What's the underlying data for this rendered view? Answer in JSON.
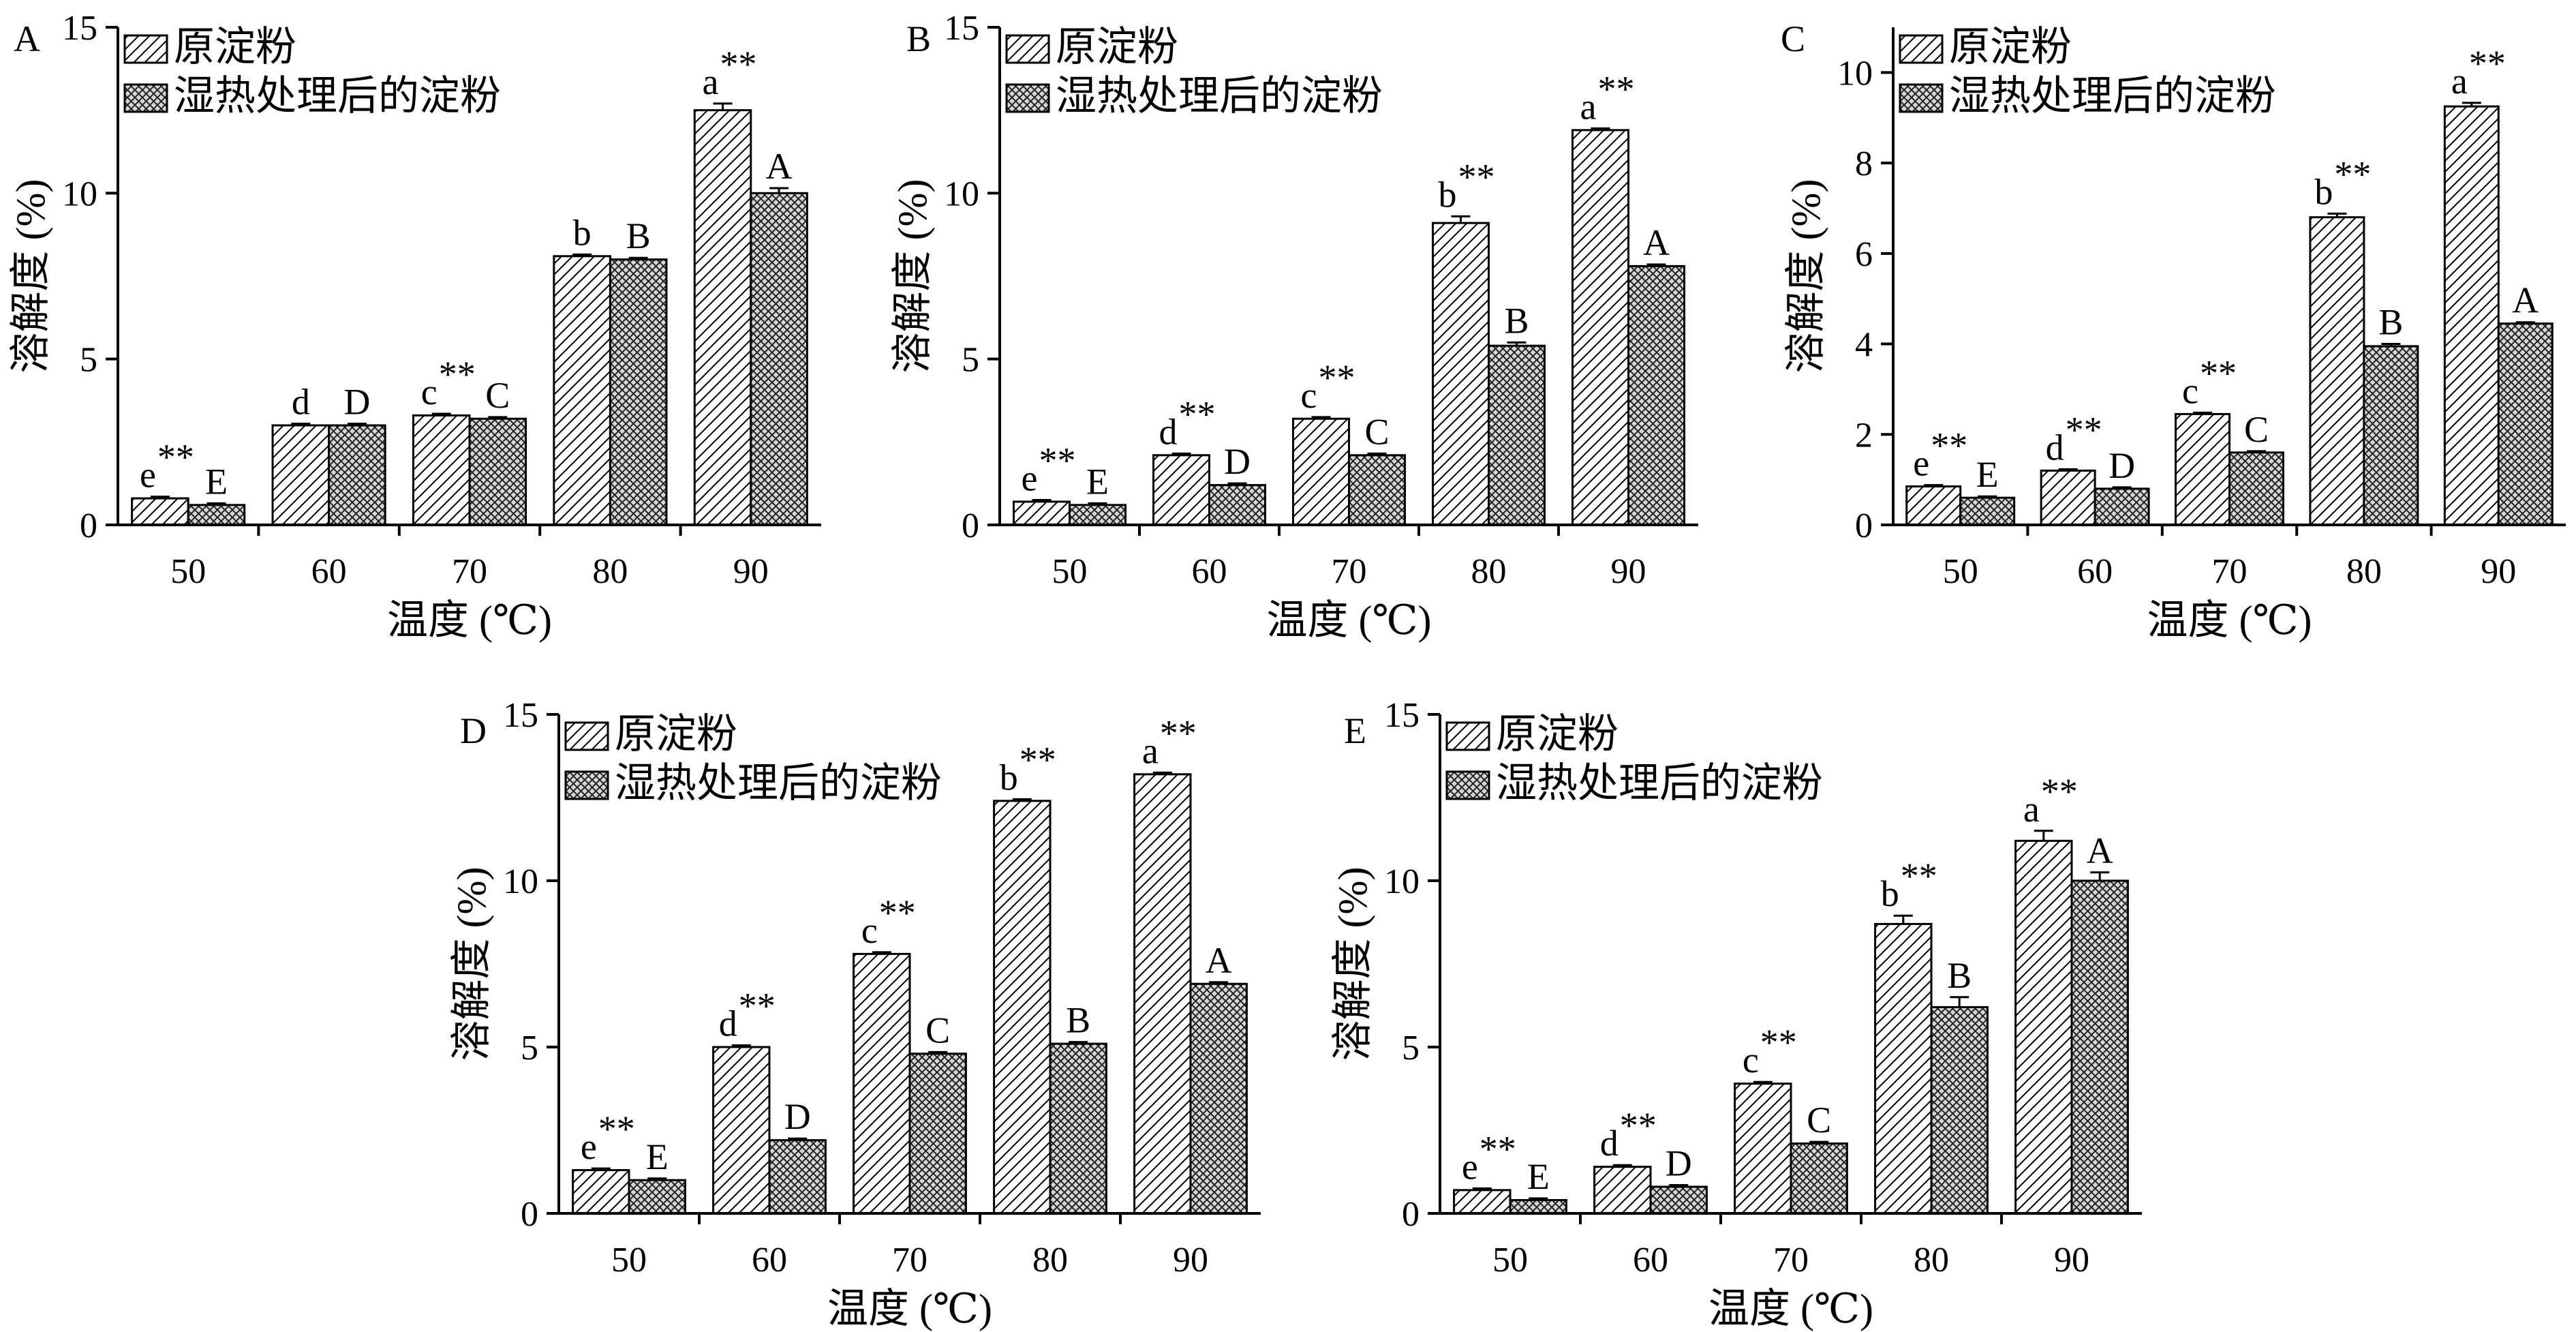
{
  "chart_data": [
    {
      "type": "bar",
      "panel": "A",
      "categories": [
        "50",
        "60",
        "70",
        "80",
        "90"
      ],
      "xlabel": "温度 (℃)",
      "ylabel": "溶解度 (%)",
      "ylim": [
        0,
        15
      ],
      "yticks": [
        0,
        5,
        10,
        15
      ],
      "series": [
        {
          "name": "原淀粉",
          "pattern": "diagonal-hatch",
          "values": [
            0.8,
            3.0,
            3.3,
            8.1,
            12.5
          ],
          "errors": [
            0.05,
            0.05,
            0.05,
            0.05,
            0.2
          ],
          "letters": [
            "e",
            "d",
            "c",
            "b",
            "a"
          ],
          "stars": [
            "**",
            "",
            "**",
            "",
            "**"
          ]
        },
        {
          "name": "湿热处理后的淀粉",
          "pattern": "cross-hatch",
          "values": [
            0.6,
            3.0,
            3.2,
            8.0,
            10.0
          ],
          "errors": [
            0.05,
            0.05,
            0.05,
            0.05,
            0.15
          ],
          "letters": [
            "E",
            "D",
            "C",
            "B",
            "A"
          ],
          "stars": [
            "",
            "",
            "",
            "",
            ""
          ]
        }
      ],
      "legend": {
        "position": "top-left"
      }
    },
    {
      "type": "bar",
      "panel": "B",
      "categories": [
        "50",
        "60",
        "70",
        "80",
        "90"
      ],
      "xlabel": "温度 (℃)",
      "ylabel": "溶解度 (%)",
      "ylim": [
        0,
        15
      ],
      "yticks": [
        0,
        5,
        10,
        15
      ],
      "series": [
        {
          "name": "原淀粉",
          "pattern": "diagonal-hatch",
          "values": [
            0.7,
            2.1,
            3.2,
            9.1,
            11.9
          ],
          "errors": [
            0.05,
            0.05,
            0.05,
            0.2,
            0.05
          ],
          "letters": [
            "e",
            "d",
            "c",
            "b",
            "a"
          ],
          "stars": [
            "**",
            "**",
            "**",
            "**",
            "**"
          ]
        },
        {
          "name": "湿热处理后的淀粉",
          "pattern": "cross-hatch",
          "values": [
            0.6,
            1.2,
            2.1,
            5.4,
            7.8
          ],
          "errors": [
            0.05,
            0.05,
            0.05,
            0.1,
            0.05
          ],
          "letters": [
            "E",
            "D",
            "C",
            "B",
            "A"
          ],
          "stars": [
            "",
            "",
            "",
            "",
            ""
          ]
        }
      ],
      "legend": {
        "position": "top-left"
      }
    },
    {
      "type": "bar",
      "panel": "C",
      "categories": [
        "50",
        "60",
        "70",
        "80",
        "90"
      ],
      "xlabel": "温度 (℃)",
      "ylabel": "溶解度 (%)",
      "ylim": [
        0,
        11
      ],
      "yticks": [
        0,
        2,
        4,
        6,
        8,
        10
      ],
      "series": [
        {
          "name": "原淀粉",
          "pattern": "diagonal-hatch",
          "values": [
            0.85,
            1.2,
            2.45,
            6.8,
            9.25
          ],
          "errors": [
            0.03,
            0.03,
            0.03,
            0.08,
            0.08
          ],
          "letters": [
            "e",
            "d",
            "c",
            "b",
            "a"
          ],
          "stars": [
            "**",
            "**",
            "**",
            "**",
            "**"
          ]
        },
        {
          "name": "湿热处理后的淀粉",
          "pattern": "cross-hatch",
          "values": [
            0.6,
            0.8,
            1.6,
            3.95,
            4.45
          ],
          "errors": [
            0.03,
            0.03,
            0.03,
            0.05,
            0.03
          ],
          "letters": [
            "E",
            "D",
            "C",
            "B",
            "A"
          ],
          "stars": [
            "",
            "",
            "",
            "",
            ""
          ]
        }
      ],
      "legend": {
        "position": "top-left"
      }
    },
    {
      "type": "bar",
      "panel": "D",
      "categories": [
        "50",
        "60",
        "70",
        "80",
        "90"
      ],
      "xlabel": "温度 (℃)",
      "ylabel": "溶解度 (%)",
      "ylim": [
        0,
        15
      ],
      "yticks": [
        0,
        5,
        10,
        15
      ],
      "series": [
        {
          "name": "原淀粉",
          "pattern": "diagonal-hatch",
          "values": [
            1.3,
            5.0,
            7.8,
            12.4,
            13.2
          ],
          "errors": [
            0.05,
            0.05,
            0.05,
            0.05,
            0.05
          ],
          "letters": [
            "e",
            "d",
            "c",
            "b",
            "a"
          ],
          "stars": [
            "**",
            "**",
            "**",
            "**",
            "**"
          ]
        },
        {
          "name": "湿热处理后的淀粉",
          "pattern": "cross-hatch",
          "values": [
            1.0,
            2.2,
            4.8,
            5.1,
            6.9
          ],
          "errors": [
            0.05,
            0.05,
            0.05,
            0.05,
            0.05
          ],
          "letters": [
            "E",
            "D",
            "C",
            "B",
            "A"
          ],
          "stars": [
            "",
            "",
            "",
            "",
            ""
          ]
        }
      ],
      "legend": {
        "position": "top-left"
      }
    },
    {
      "type": "bar",
      "panel": "E",
      "categories": [
        "50",
        "60",
        "70",
        "80",
        "90"
      ],
      "xlabel": "温度 (℃)",
      "ylabel": "溶解度 (%)",
      "ylim": [
        0,
        15
      ],
      "yticks": [
        0,
        5,
        10,
        15
      ],
      "series": [
        {
          "name": "原淀粉",
          "pattern": "diagonal-hatch",
          "values": [
            0.7,
            1.4,
            3.9,
            8.7,
            11.2
          ],
          "errors": [
            0.05,
            0.05,
            0.05,
            0.25,
            0.3
          ],
          "letters": [
            "e",
            "d",
            "c",
            "b",
            "a"
          ],
          "stars": [
            "**",
            "**",
            "**",
            "**",
            "**"
          ]
        },
        {
          "name": "湿热处理后的淀粉",
          "pattern": "cross-hatch",
          "values": [
            0.4,
            0.8,
            2.1,
            6.2,
            10.0
          ],
          "errors": [
            0.05,
            0.05,
            0.05,
            0.3,
            0.25
          ],
          "letters": [
            "E",
            "D",
            "C",
            "B",
            "A"
          ],
          "stars": [
            "",
            "",
            "",
            "",
            ""
          ]
        }
      ],
      "legend": {
        "position": "top-left"
      }
    }
  ]
}
